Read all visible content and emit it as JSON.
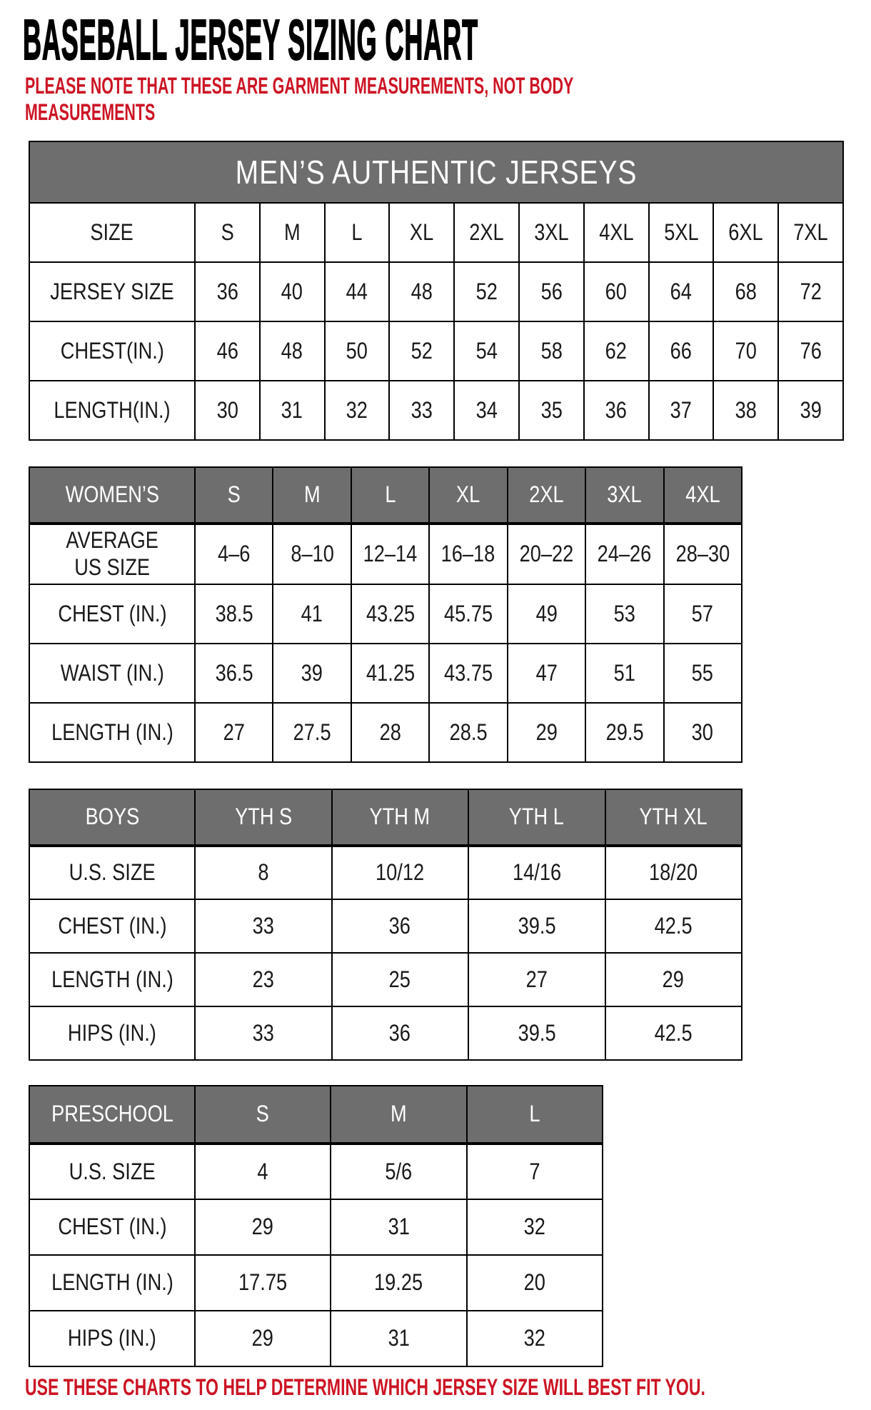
{
  "page": {
    "title": "BASEBALL JERSEY SIZING CHART",
    "note": "PLEASE NOTE THAT THESE ARE GARMENT MEASUREMENTS, NOT BODY\nMEASUREMENTS",
    "footer": "USE THESE CHARTS TO HELP DETERMINE WHICH JERSEY SIZE WILL BEST FIT YOU."
  },
  "colors": {
    "header_gray": "#6e6e6e",
    "accent_red": "#cc1424",
    "border_black": "#000000",
    "text_black": "#1a1a1a"
  },
  "tables": {
    "men": {
      "title": "MEN’S AUTHENTIC JERSEYS",
      "header_row": [
        "SIZE",
        "S",
        "M",
        "L",
        "XL",
        "2XL",
        "3XL",
        "4XL",
        "5XL",
        "6XL",
        "7XL"
      ],
      "rows": [
        [
          "JERSEY SIZE",
          "36",
          "40",
          "44",
          "48",
          "52",
          "56",
          "60",
          "64",
          "68",
          "72"
        ],
        [
          "CHEST(IN.)",
          "46",
          "48",
          "50",
          "52",
          "54",
          "58",
          "62",
          "66",
          "70",
          "76"
        ],
        [
          "LENGTH(IN.)",
          "30",
          "31",
          "32",
          "33",
          "34",
          "35",
          "36",
          "37",
          "38",
          "39"
        ]
      ]
    },
    "women": {
      "header_row": [
        "WOMEN’S",
        "S",
        "M",
        "L",
        "XL",
        "2XL",
        "3XL",
        "4XL"
      ],
      "rows": [
        [
          "AVERAGE\nUS SIZE",
          "4–6",
          "8–10",
          "12–14",
          "16–18",
          "20–22",
          "24–26",
          "28–30"
        ],
        [
          "CHEST (IN.)",
          "38.5",
          "41",
          "43.25",
          "45.75",
          "49",
          "53",
          "57"
        ],
        [
          "WAIST (IN.)",
          "36.5",
          "39",
          "41.25",
          "43.75",
          "47",
          "51",
          "55"
        ],
        [
          "LENGTH (IN.)",
          "27",
          "27.5",
          "28",
          "28.5",
          "29",
          "29.5",
          "30"
        ]
      ]
    },
    "boys": {
      "header_row": [
        "BOYS",
        "YTH S",
        "YTH M",
        "YTH L",
        "YTH XL"
      ],
      "rows": [
        [
          "U.S. SIZE",
          "8",
          "10/12",
          "14/16",
          "18/20"
        ],
        [
          "CHEST (IN.)",
          "33",
          "36",
          "39.5",
          "42.5"
        ],
        [
          "LENGTH (IN.)",
          "23",
          "25",
          "27",
          "29"
        ],
        [
          "HIPS (IN.)",
          "33",
          "36",
          "39.5",
          "42.5"
        ]
      ]
    },
    "preschool": {
      "header_row": [
        "PRESCHOOL",
        "S",
        "M",
        "L"
      ],
      "rows": [
        [
          "U.S. SIZE",
          "4",
          "5/6",
          "7"
        ],
        [
          "CHEST (IN.)",
          "29",
          "31",
          "32"
        ],
        [
          "LENGTH (IN.)",
          "17.75",
          "19.25",
          "20"
        ],
        [
          "HIPS (IN.)",
          "29",
          "31",
          "32"
        ]
      ]
    }
  }
}
